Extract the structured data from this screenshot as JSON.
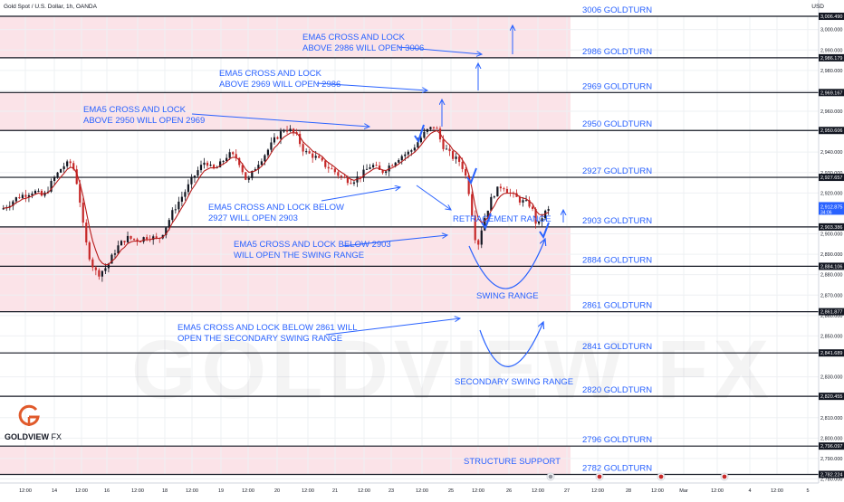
{
  "header": {
    "symbol": "Gold Spot / U.S. Dollar, 1h, OANDA",
    "currency": "USD"
  },
  "watermark": "GOLDVIEW FX",
  "logo": {
    "name_bold": "GOLDVIEW",
    "name_rest": "FX"
  },
  "colors": {
    "zone_fill": "#fbe3e8",
    "up_candle": "#131722",
    "down_candle": "#c62828",
    "ema": "#b71c1c",
    "annotation_blue": "#2962ff",
    "level_text": "#2962ff",
    "price_badge": "#2962ff"
  },
  "chart_data": {
    "type": "candlestick",
    "title": "",
    "ylim": [
      2777,
      3009
    ],
    "grid": true,
    "current_price": {
      "value": "2,912.875",
      "countdown": "34:06"
    },
    "price_ticks": [
      {
        "v": 3000,
        "label": "3,000.000"
      },
      {
        "v": 2990,
        "label": "2,990.000"
      },
      {
        "v": 2980,
        "label": "2,980.000"
      },
      {
        "v": 2970,
        "label": "2,970.000"
      },
      {
        "v": 2960,
        "label": "2,960.000"
      },
      {
        "v": 2940,
        "label": "2,940.000"
      },
      {
        "v": 2930,
        "label": "2,930.000"
      },
      {
        "v": 2920,
        "label": "2,920.000"
      },
      {
        "v": 2900,
        "label": "2,900.000"
      },
      {
        "v": 2890,
        "label": "2,890.000"
      },
      {
        "v": 2880,
        "label": "2,880.000"
      },
      {
        "v": 2870,
        "label": "2,870.000"
      },
      {
        "v": 2860,
        "label": "2,860.000"
      },
      {
        "v": 2850,
        "label": "2,850.000"
      },
      {
        "v": 2830,
        "label": "2,830.000"
      },
      {
        "v": 2810,
        "label": "2,810.000"
      },
      {
        "v": 2800,
        "label": "2,800.000"
      },
      {
        "v": 2790,
        "label": "2,790.000"
      },
      {
        "v": 2780,
        "label": "2,780.000"
      }
    ],
    "levels": [
      {
        "value": 3006.49,
        "label": "3006 GOLDTURN",
        "badge": "3,006.490"
      },
      {
        "value": 2986.179,
        "label": "2986 GOLDTURN",
        "badge": "2,986.179"
      },
      {
        "value": 2969.167,
        "label": "2969 GOLDTURN",
        "badge": "2,969.167"
      },
      {
        "value": 2950.606,
        "label": "2950 GOLDTURN",
        "badge": "2,950.606"
      },
      {
        "value": 2927.657,
        "label": "2927 GOLDTURN",
        "badge": "2,927.657"
      },
      {
        "value": 2903.386,
        "label": "2903 GOLDTURN",
        "badge": "2,903.386"
      },
      {
        "value": 2884.106,
        "label": "2884 GOLDTURN",
        "badge": "2,884.106"
      },
      {
        "value": 2861.877,
        "label": "2861 GOLDTURN",
        "badge": "2,861.877"
      },
      {
        "value": 2841.689,
        "label": "2841 GOLDTURN",
        "badge": "2,841.689"
      },
      {
        "value": 2820.455,
        "label": "2820 GOLDTURN",
        "badge": "2,820.455"
      },
      {
        "value": 2796.097,
        "label": "2796 GOLDTURN",
        "badge": "2,796.097"
      },
      {
        "value": 2782.224,
        "label": "2782 GOLDTURN",
        "badge": "2,782.224"
      }
    ],
    "zones": [
      {
        "from": 2986.179,
        "to": 3006.49
      },
      {
        "from": 2950.606,
        "to": 2969.167
      },
      {
        "from": 2884.106,
        "to": 2903.386
      },
      {
        "from": 2861.877,
        "to": 2884.106
      },
      {
        "from": 2782.224,
        "to": 2796.097
      }
    ],
    "time_ticks": [
      "12:00",
      "14",
      "12:00",
      "16",
      "12:00",
      "18",
      "12:00",
      "19",
      "12:00",
      "20",
      "12:00",
      "21",
      "12:00",
      "23",
      "12:00",
      "25",
      "12:00",
      "26",
      "12:00",
      "27",
      "12:00",
      "28",
      "12:00",
      "Mar",
      "12:00",
      "4",
      "12:00",
      "5"
    ],
    "annotations": [
      {
        "lines": [
          "EMA5 CROSS AND LOCK",
          "ABOVE 2986 WILL OPEN 3006"
        ]
      },
      {
        "lines": [
          "EMA5 CROSS AND LOCK",
          "ABOVE 2969 WILL OPEN 2986"
        ]
      },
      {
        "lines": [
          "EMA5 CROSS AND LOCK",
          "ABOVE 2950 WILL OPEN 2969"
        ]
      },
      {
        "lines": [
          "EMA5 CROSS AND LOCK BELOW",
          "2927 WILL OPEN 2903"
        ]
      },
      {
        "lines": [
          "EMA5 CROSS AND LOCK BELOW 2903",
          "WILL OPEN THE SWING RANGE"
        ]
      },
      {
        "lines": [
          "EMA5 CROSS AND LOCK BELOW 2861 WILL",
          "OPEN THE SECONDARY SWING RANGE"
        ]
      }
    ],
    "range_labels": [
      {
        "text": "RETRACEMENT RANGE"
      },
      {
        "text": "SWING RANGE"
      },
      {
        "text": "SECONDARY SWING RANGE"
      },
      {
        "text": "STRUCTURE SUPPORT"
      }
    ],
    "price_path": [
      [
        0,
        2912
      ],
      [
        5,
        2918
      ],
      [
        10,
        2921
      ],
      [
        13,
        2918
      ],
      [
        16,
        2926
      ],
      [
        19,
        2933
      ],
      [
        22,
        2935
      ],
      [
        24,
        2922
      ],
      [
        26,
        2898
      ],
      [
        28,
        2886
      ],
      [
        30,
        2880
      ],
      [
        33,
        2884
      ],
      [
        36,
        2893
      ],
      [
        39,
        2898
      ],
      [
        43,
        2897
      ],
      [
        46,
        2899
      ],
      [
        49,
        2897
      ],
      [
        51,
        2902
      ],
      [
        54,
        2912
      ],
      [
        58,
        2922
      ],
      [
        61,
        2930
      ],
      [
        64,
        2936
      ],
      [
        66,
        2931
      ],
      [
        68,
        2933
      ],
      [
        71,
        2939
      ],
      [
        74,
        2937
      ],
      [
        77,
        2925
      ],
      [
        80,
        2934
      ],
      [
        83,
        2940
      ],
      [
        86,
        2947
      ],
      [
        89,
        2952
      ],
      [
        92,
        2949
      ],
      [
        95,
        2940
      ],
      [
        98,
        2938
      ],
      [
        101,
        2934
      ],
      [
        104,
        2931
      ],
      [
        107,
        2927
      ],
      [
        110,
        2926
      ],
      [
        113,
        2929
      ],
      [
        116,
        2934
      ],
      [
        119,
        2930
      ],
      [
        122,
        2934
      ],
      [
        125,
        2938
      ],
      [
        128,
        2940
      ],
      [
        131,
        2946
      ],
      [
        133,
        2950
      ],
      [
        136,
        2953
      ],
      [
        138,
        2944
      ],
      [
        141,
        2938
      ],
      [
        144,
        2935
      ],
      [
        146,
        2926
      ],
      [
        148,
        2905
      ],
      [
        149,
        2892
      ],
      [
        151,
        2906
      ],
      [
        154,
        2919
      ],
      [
        157,
        2924
      ],
      [
        160,
        2919
      ],
      [
        163,
        2916
      ],
      [
        166,
        2914
      ],
      [
        168,
        2903
      ],
      [
        170,
        2910
      ],
      [
        172,
        2912
      ]
    ]
  }
}
